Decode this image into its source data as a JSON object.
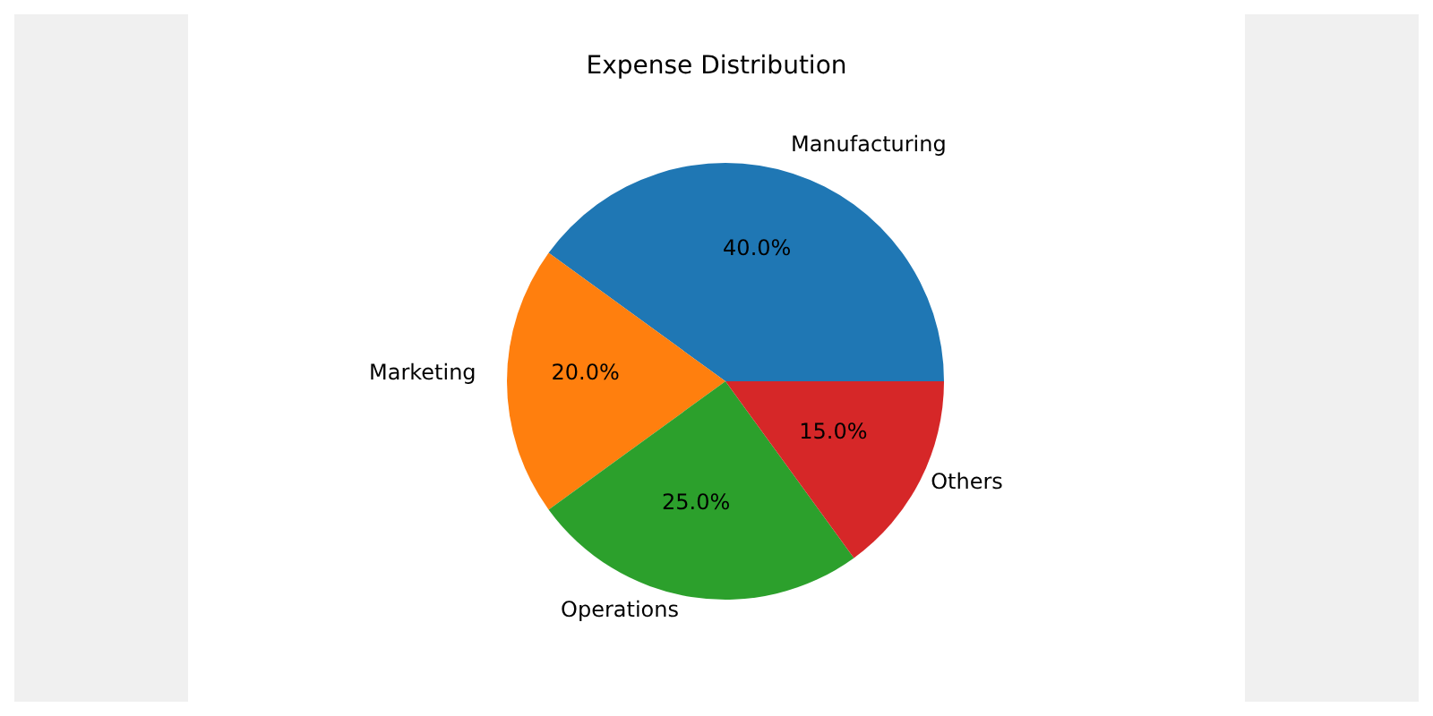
{
  "chart_data": {
    "type": "pie",
    "title": "Expense Distribution",
    "categories": [
      "Manufacturing",
      "Marketing",
      "Operations",
      "Others"
    ],
    "values": [
      40,
      20,
      25,
      15
    ],
    "colors": [
      "#1f77b4",
      "#ff7f0e",
      "#2ca02c",
      "#d62728"
    ],
    "value_labels": [
      "40.0%",
      "20.0%",
      "25.0%",
      "15.0%"
    ]
  }
}
